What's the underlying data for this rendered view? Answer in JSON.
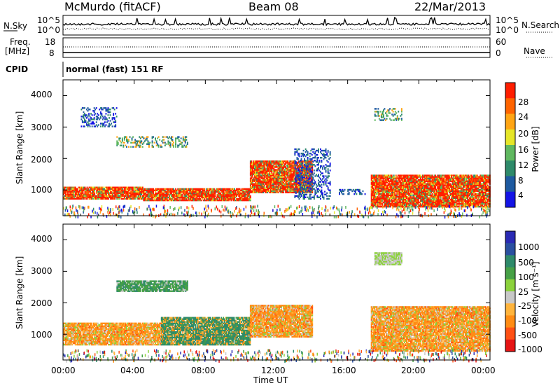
{
  "header": {
    "station": "McMurdo (fitACF)",
    "beam": "Beam 08",
    "date": "22/Mar/2013"
  },
  "top_panel": {
    "left_label": "N.Sky",
    "right_label": "N.Search",
    "tick_top": "10^5",
    "tick_bottom": "10^0"
  },
  "freq_panel": {
    "left_label_1": "Freq.",
    "left_label_2": "[MHz]",
    "tick_top": "18",
    "tick_bottom": "8",
    "right_label": "Nave",
    "right_tick_top": "60",
    "right_tick_bottom": "0"
  },
  "cpid": {
    "label": "CPID",
    "value": "normal (fast) 151 RF"
  },
  "power_panel": {
    "ylabel": "Slant Range [km]",
    "yticks": [
      "4000",
      "3000",
      "2000",
      "1000"
    ],
    "colorbar_label": "Power [dB]",
    "colorbar_ticks": [
      "28",
      "24",
      "20",
      "16",
      "12",
      "8",
      "4"
    ],
    "colors": [
      "#1414e6",
      "#1e5aa0",
      "#2e8a6a",
      "#60b860",
      "#e6e628",
      "#ffa514",
      "#ff6400",
      "#ff1e00"
    ]
  },
  "velocity_panel": {
    "ylabel": "Slant Range [km]",
    "yticks": [
      "4000",
      "3000",
      "2000",
      "1000"
    ],
    "colorbar_label": "Velocity [m s⁻¹]",
    "colorbar_ticks": [
      "1000",
      "500",
      "100",
      "25",
      "-25",
      "-100",
      "-500",
      "-1000"
    ],
    "colors": [
      "#2a2ab4",
      "#2a50a0",
      "#2e8a6a",
      "#46a046",
      "#8cd23c",
      "#c8c8c8",
      "#ffb43c",
      "#ff8c14",
      "#ff5014",
      "#e61414"
    ]
  },
  "xaxis": {
    "label": "Time UT",
    "ticks": [
      "00:00",
      "04:00",
      "08:00",
      "12:00",
      "16:00",
      "20:00",
      "00:00"
    ]
  },
  "chart_data": [
    {
      "type": "line",
      "title": "",
      "series": [
        {
          "name": "N.Sky",
          "values": []
        },
        {
          "name": "N.Search",
          "values": []
        }
      ],
      "ylim_log10": [
        0,
        5
      ],
      "x_hours": [
        0,
        24
      ]
    },
    {
      "type": "line",
      "series": [
        {
          "name": "Freq.",
          "values_MHz": [
            11,
            11,
            11,
            11,
            11,
            11,
            11
          ]
        },
        {
          "name": "Nave",
          "values": [
            40,
            40,
            40,
            40,
            40,
            40,
            40
          ]
        }
      ],
      "ylim": [
        8,
        18
      ]
    },
    {
      "type": "heatmap",
      "title": "",
      "quantity": "Power [dB]",
      "ylim": [
        180,
        4500
      ],
      "clim": [
        0,
        30
      ],
      "x_hours": [
        0,
        24
      ],
      "regions": [
        {
          "t0": 0.0,
          "t1": 4.5,
          "r0": 700,
          "r1": 1100,
          "level": "high"
        },
        {
          "t0": 4.5,
          "t1": 10.5,
          "r0": 650,
          "r1": 1050,
          "level": "high"
        },
        {
          "t0": 10.5,
          "t1": 14.0,
          "r0": 900,
          "r1": 1900,
          "level": "high"
        },
        {
          "t0": 17.3,
          "t1": 24.0,
          "r0": 450,
          "r1": 1450,
          "level": "high"
        },
        {
          "t0": 1.0,
          "t1": 3.0,
          "r0": 3000,
          "r1": 3600,
          "level": "low"
        },
        {
          "t0": 3.0,
          "t1": 7.0,
          "r0": 2350,
          "r1": 2700,
          "level": "mid"
        },
        {
          "t0": 17.5,
          "t1": 19.0,
          "r0": 3200,
          "r1": 3600,
          "level": "mid"
        },
        {
          "t0": 13.0,
          "t1": 15.0,
          "r0": 700,
          "r1": 2300,
          "level": "low"
        },
        {
          "t0": 15.5,
          "t1": 17.0,
          "r0": 850,
          "r1": 1000,
          "level": "low"
        }
      ]
    },
    {
      "type": "heatmap",
      "quantity": "Velocity [m s-1]",
      "ylim": [
        180,
        4500
      ],
      "clim": [
        -1000,
        1000
      ],
      "x_hours": [
        0,
        24
      ],
      "regions": [
        {
          "t0": 0.0,
          "t1": 5.5,
          "r0": 650,
          "r1": 1350,
          "velocity": -100
        },
        {
          "t0": 5.5,
          "t1": 10.5,
          "r0": 650,
          "r1": 1550,
          "velocity": 100
        },
        {
          "t0": 10.5,
          "t1": 14.0,
          "r0": 900,
          "r1": 1900,
          "velocity": -100
        },
        {
          "t0": 17.3,
          "t1": 24.0,
          "r0": 450,
          "r1": 1850,
          "velocity": -100
        },
        {
          "t0": 3.0,
          "t1": 7.0,
          "r0": 2350,
          "r1": 2700,
          "velocity": 25
        },
        {
          "t0": 17.5,
          "t1": 19.0,
          "r0": 3200,
          "r1": 3600,
          "velocity": -25
        }
      ]
    }
  ]
}
